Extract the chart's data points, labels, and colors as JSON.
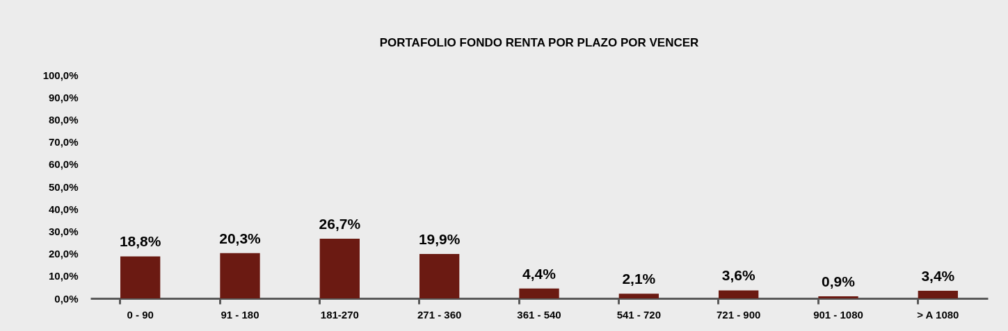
{
  "chart_data": {
    "type": "bar",
    "title": "PORTAFOLIO FONDO RENTA POR PLAZO POR VENCER",
    "categories": [
      "0 - 90",
      "91 - 180",
      "181-270",
      "271 - 360",
      "361 - 540",
      "541 - 720",
      "721 - 900",
      "901 - 1080",
      "> A 1080"
    ],
    "values": [
      18.8,
      20.3,
      26.7,
      19.9,
      4.4,
      2.1,
      3.6,
      0.9,
      3.4
    ],
    "value_labels": [
      "18,8%",
      "20,3%",
      "26,7%",
      "19,9%",
      "4,4%",
      "2,1%",
      "3,6%",
      "0,9%",
      "3,4%"
    ],
    "color": "#6b1a12",
    "ylim": [
      0,
      100
    ],
    "yticks": [
      {
        "value": 0,
        "label": "0,0%"
      },
      {
        "value": 10,
        "label": "10,0%"
      },
      {
        "value": 20,
        "label": "20,0%"
      },
      {
        "value": 30,
        "label": "30,0%"
      },
      {
        "value": 40,
        "label": "40,0%"
      },
      {
        "value": 50,
        "label": "50,0%"
      },
      {
        "value": 60,
        "label": "60,0%"
      },
      {
        "value": 70,
        "label": "70,0%"
      },
      {
        "value": 80,
        "label": "80,0%"
      },
      {
        "value": 90,
        "label": "90,0%"
      },
      {
        "value": 100,
        "label": "100,0%"
      }
    ],
    "grid": false
  }
}
